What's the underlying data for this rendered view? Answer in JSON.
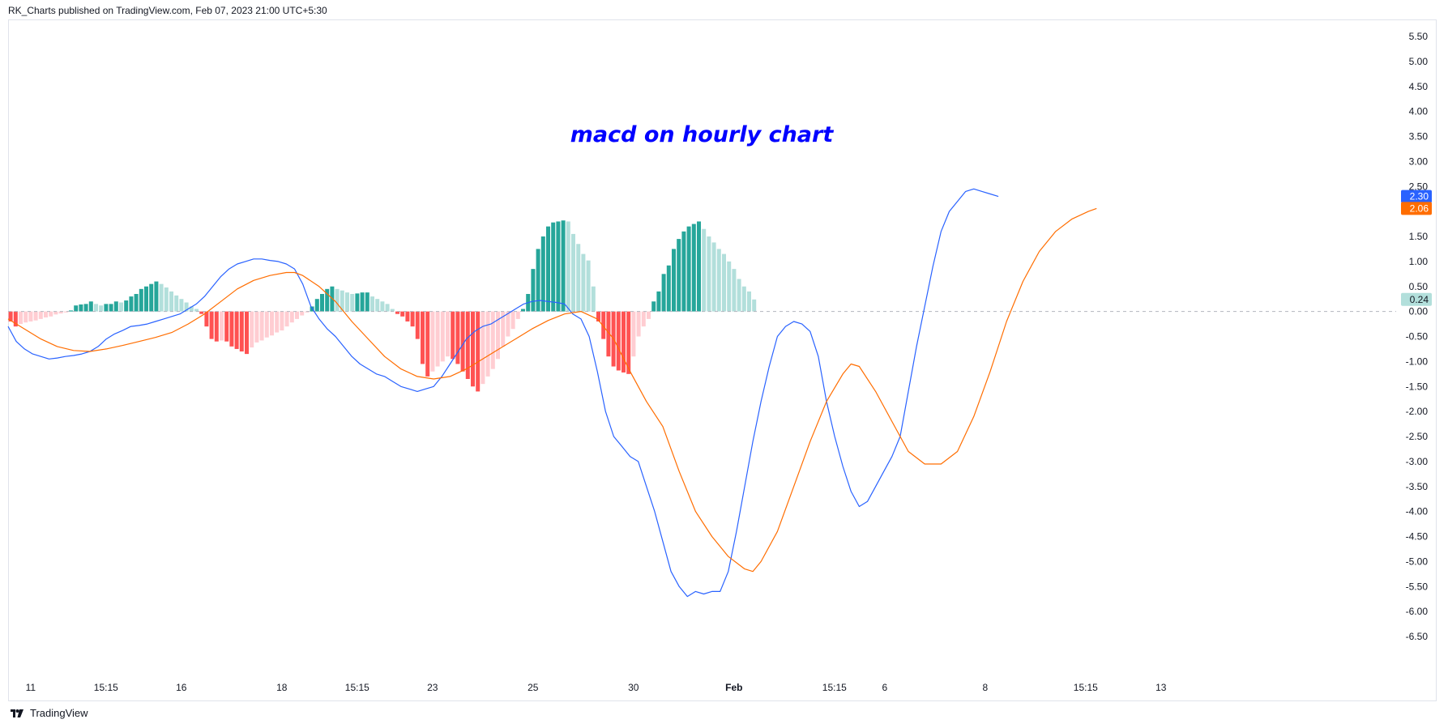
{
  "header": {
    "publish_line": "RK_Charts published on TradingView.com, Feb 07, 2023 21:00 UTC+5:30"
  },
  "footer": {
    "brand": "TradingView",
    "logo_icon": "tradingview-logo-icon"
  },
  "colors": {
    "macd_line": "#2962ff",
    "signal_line": "#ff6d00",
    "hist_pos_strong": "#26a69a",
    "hist_pos_weak": "#b2dfdb",
    "hist_neg_strong": "#ff5252",
    "hist_neg_weak": "#ffcdd2",
    "title": "#0000ff",
    "zero_line": "#b2b5be"
  },
  "chart_data": {
    "type": "bar+line",
    "title": "macd on hourly chart",
    "xlabel": "",
    "ylabel": "",
    "ylim": [
      -6.5,
      5.5
    ],
    "y_ticks": [
      "5.50",
      "5.00",
      "4.50",
      "4.00",
      "3.50",
      "3.00",
      "2.50",
      "2.00",
      "1.50",
      "1.00",
      "0.50",
      "0.00",
      "-0.50",
      "-1.00",
      "-1.50",
      "-2.00",
      "-2.50",
      "-3.00",
      "-3.50",
      "-4.00",
      "-4.50",
      "-5.00",
      "-5.50",
      "-6.00",
      "-6.50"
    ],
    "x_ticks": [
      {
        "label": "11",
        "bar": 4,
        "bold": false
      },
      {
        "label": "15:15",
        "bar": 19,
        "bold": false
      },
      {
        "label": "16",
        "bar": 34,
        "bold": false
      },
      {
        "label": "18",
        "bar": 54,
        "bold": false
      },
      {
        "label": "15:15",
        "bar": 69,
        "bold": false
      },
      {
        "label": "23",
        "bar": 84,
        "bold": false
      },
      {
        "label": "25",
        "bar": 104,
        "bold": false
      },
      {
        "label": "30",
        "bar": 124,
        "bold": false
      },
      {
        "label": "Feb",
        "bar": 144,
        "bold": true
      },
      {
        "label": "15:15",
        "bar": 164,
        "bold": false
      },
      {
        "label": "6",
        "bar": 174,
        "bold": false
      },
      {
        "label": "8",
        "bar": 194,
        "bold": false
      },
      {
        "label": "15:15",
        "bar": 214,
        "bold": false
      },
      {
        "label": "13",
        "bar": 229,
        "bold": false
      }
    ],
    "last_values": {
      "macd": "2.30",
      "signal": "2.06",
      "histogram": "0.24"
    },
    "histogram": [
      -0.2,
      -0.3,
      -0.25,
      -0.22,
      -0.2,
      -0.18,
      -0.15,
      -0.12,
      -0.1,
      -0.06,
      -0.04,
      -0.02,
      0.02,
      0.12,
      0.14,
      0.15,
      0.2,
      0.15,
      0.12,
      0.15,
      0.15,
      0.2,
      0.18,
      0.22,
      0.3,
      0.35,
      0.45,
      0.5,
      0.55,
      0.6,
      0.55,
      0.48,
      0.4,
      0.32,
      0.25,
      0.18,
      0.1,
      0.05,
      -0.05,
      -0.3,
      -0.55,
      -0.6,
      -0.58,
      -0.6,
      -0.7,
      -0.75,
      -0.8,
      -0.85,
      -0.72,
      -0.62,
      -0.58,
      -0.52,
      -0.48,
      -0.42,
      -0.38,
      -0.3,
      -0.22,
      -0.15,
      -0.08,
      -0.02,
      0.1,
      0.25,
      0.35,
      0.45,
      0.5,
      0.45,
      0.42,
      0.38,
      0.35,
      0.36,
      0.38,
      0.38,
      0.3,
      0.25,
      0.2,
      0.15,
      0.05,
      -0.05,
      -0.1,
      -0.2,
      -0.3,
      -0.55,
      -1.05,
      -1.3,
      -1.2,
      -1.1,
      -1.0,
      -0.9,
      -0.95,
      -1.05,
      -1.2,
      -1.35,
      -1.5,
      -1.6,
      -1.45,
      -1.3,
      -1.15,
      -0.95,
      -0.7,
      -0.5,
      -0.35,
      -0.15,
      0.05,
      0.35,
      0.85,
      1.25,
      1.5,
      1.7,
      1.78,
      1.8,
      1.82,
      1.8,
      1.55,
      1.35,
      1.15,
      1.02,
      0.5,
      -0.2,
      -0.55,
      -0.9,
      -1.1,
      -1.18,
      -1.22,
      -1.25,
      -0.9,
      -0.5,
      -0.3,
      -0.15,
      0.2,
      0.4,
      0.75,
      0.92,
      1.25,
      1.45,
      1.6,
      1.7,
      1.75,
      1.8,
      1.65,
      1.5,
      1.38,
      1.25,
      1.15,
      1.0,
      0.85,
      0.65,
      0.5,
      0.4,
      0.24
    ],
    "series": [
      {
        "name": "MACD",
        "values": [
          [
            0,
            -0.3
          ],
          [
            1,
            -0.6
          ],
          [
            2,
            -0.75
          ],
          [
            3,
            -0.85
          ],
          [
            4,
            -0.9
          ],
          [
            5,
            -0.95
          ],
          [
            6,
            -0.93
          ],
          [
            7,
            -0.9
          ],
          [
            8,
            -0.88
          ],
          [
            9,
            -0.85
          ],
          [
            10,
            -0.8
          ],
          [
            11,
            -0.7
          ],
          [
            12,
            -0.55
          ],
          [
            13,
            -0.45
          ],
          [
            14,
            -0.38
          ],
          [
            15,
            -0.3
          ],
          [
            16,
            -0.28
          ],
          [
            17,
            -0.25
          ],
          [
            18,
            -0.2
          ],
          [
            19,
            -0.15
          ],
          [
            20,
            -0.1
          ],
          [
            21,
            -0.05
          ],
          [
            22,
            0.05
          ],
          [
            23,
            0.15
          ],
          [
            24,
            0.3
          ],
          [
            25,
            0.5
          ],
          [
            26,
            0.7
          ],
          [
            27,
            0.85
          ],
          [
            28,
            0.95
          ],
          [
            29,
            1.0
          ],
          [
            30,
            1.05
          ],
          [
            31,
            1.05
          ],
          [
            32,
            1.02
          ],
          [
            33,
            1.0
          ],
          [
            34,
            0.95
          ],
          [
            35,
            0.85
          ],
          [
            36,
            0.55
          ],
          [
            37,
            0.1
          ],
          [
            38,
            -0.15
          ],
          [
            39,
            -0.35
          ],
          [
            40,
            -0.5
          ],
          [
            41,
            -0.7
          ],
          [
            42,
            -0.9
          ],
          [
            43,
            -1.05
          ],
          [
            44,
            -1.15
          ],
          [
            45,
            -1.25
          ],
          [
            46,
            -1.3
          ],
          [
            47,
            -1.4
          ],
          [
            48,
            -1.5
          ],
          [
            49,
            -1.55
          ],
          [
            50,
            -1.6
          ],
          [
            51,
            -1.55
          ],
          [
            52,
            -1.5
          ],
          [
            53,
            -1.3
          ],
          [
            54,
            -1.05
          ],
          [
            55,
            -0.8
          ],
          [
            56,
            -0.55
          ],
          [
            57,
            -0.4
          ],
          [
            58,
            -0.3
          ],
          [
            59,
            -0.25
          ],
          [
            60,
            -0.15
          ],
          [
            61,
            -0.05
          ],
          [
            62,
            0.05
          ],
          [
            63,
            0.15
          ],
          [
            64,
            0.2
          ],
          [
            65,
            0.22
          ],
          [
            66,
            0.2
          ],
          [
            67,
            0.18
          ],
          [
            68,
            0.15
          ],
          [
            69,
            -0.05
          ],
          [
            70,
            -0.15
          ],
          [
            71,
            -0.5
          ],
          [
            72,
            -1.2
          ],
          [
            73,
            -2.0
          ],
          [
            74,
            -2.5
          ],
          [
            75,
            -2.7
          ],
          [
            76,
            -2.9
          ],
          [
            77,
            -3.0
          ],
          [
            78,
            -3.5
          ],
          [
            79,
            -4.0
          ],
          [
            80,
            -4.6
          ],
          [
            81,
            -5.2
          ],
          [
            82,
            -5.5
          ],
          [
            83,
            -5.7
          ],
          [
            84,
            -5.6
          ],
          [
            85,
            -5.65
          ],
          [
            86,
            -5.6
          ],
          [
            87,
            -5.6
          ],
          [
            88,
            -5.2
          ],
          [
            89,
            -4.4
          ],
          [
            90,
            -3.5
          ],
          [
            91,
            -2.6
          ],
          [
            92,
            -1.8
          ],
          [
            93,
            -1.1
          ],
          [
            94,
            -0.5
          ],
          [
            95,
            -0.3
          ],
          [
            96,
            -0.2
          ],
          [
            97,
            -0.25
          ],
          [
            98,
            -0.4
          ],
          [
            99,
            -0.9
          ],
          [
            100,
            -1.8
          ],
          [
            101,
            -2.5
          ],
          [
            102,
            -3.1
          ],
          [
            103,
            -3.6
          ],
          [
            104,
            -3.9
          ],
          [
            105,
            -3.8
          ],
          [
            106,
            -3.5
          ],
          [
            107,
            -3.2
          ],
          [
            108,
            -2.9
          ],
          [
            109,
            -2.5
          ],
          [
            110,
            -1.6
          ],
          [
            111,
            -0.7
          ],
          [
            112,
            0.1
          ],
          [
            113,
            0.9
          ],
          [
            114,
            1.6
          ],
          [
            115,
            2.0
          ],
          [
            116,
            2.2
          ],
          [
            117,
            2.4
          ],
          [
            118,
            2.45
          ],
          [
            119,
            2.4
          ],
          [
            120,
            2.35
          ],
          [
            121,
            2.3
          ]
        ]
      },
      {
        "name": "Signal",
        "values": [
          [
            0,
            -0.15
          ],
          [
            2,
            -0.35
          ],
          [
            4,
            -0.55
          ],
          [
            6,
            -0.7
          ],
          [
            8,
            -0.78
          ],
          [
            10,
            -0.8
          ],
          [
            12,
            -0.75
          ],
          [
            14,
            -0.68
          ],
          [
            16,
            -0.6
          ],
          [
            18,
            -0.52
          ],
          [
            20,
            -0.42
          ],
          [
            22,
            -0.25
          ],
          [
            24,
            -0.05
          ],
          [
            26,
            0.2
          ],
          [
            28,
            0.45
          ],
          [
            30,
            0.62
          ],
          [
            32,
            0.72
          ],
          [
            34,
            0.78
          ],
          [
            35,
            0.78
          ],
          [
            36,
            0.72
          ],
          [
            38,
            0.5
          ],
          [
            40,
            0.2
          ],
          [
            42,
            -0.2
          ],
          [
            44,
            -0.55
          ],
          [
            46,
            -0.9
          ],
          [
            48,
            -1.15
          ],
          [
            50,
            -1.3
          ],
          [
            52,
            -1.35
          ],
          [
            54,
            -1.3
          ],
          [
            56,
            -1.15
          ],
          [
            58,
            -0.95
          ],
          [
            60,
            -0.75
          ],
          [
            62,
            -0.55
          ],
          [
            64,
            -0.35
          ],
          [
            66,
            -0.18
          ],
          [
            68,
            -0.05
          ],
          [
            70,
            0.0
          ],
          [
            72,
            -0.15
          ],
          [
            74,
            -0.55
          ],
          [
            76,
            -1.2
          ],
          [
            78,
            -1.8
          ],
          [
            80,
            -2.3
          ],
          [
            82,
            -3.2
          ],
          [
            84,
            -4.0
          ],
          [
            86,
            -4.5
          ],
          [
            88,
            -4.9
          ],
          [
            90,
            -5.15
          ],
          [
            91,
            -5.2
          ],
          [
            92,
            -5.0
          ],
          [
            94,
            -4.4
          ],
          [
            96,
            -3.5
          ],
          [
            98,
            -2.6
          ],
          [
            100,
            -1.8
          ],
          [
            102,
            -1.25
          ],
          [
            103,
            -1.05
          ],
          [
            104,
            -1.1
          ],
          [
            106,
            -1.6
          ],
          [
            108,
            -2.2
          ],
          [
            110,
            -2.8
          ],
          [
            112,
            -3.05
          ],
          [
            114,
            -3.05
          ],
          [
            116,
            -2.8
          ],
          [
            118,
            -2.1
          ],
          [
            120,
            -1.2
          ],
          [
            122,
            -0.2
          ],
          [
            124,
            0.6
          ],
          [
            126,
            1.2
          ],
          [
            128,
            1.6
          ],
          [
            130,
            1.85
          ],
          [
            132,
            2.0
          ],
          [
            133,
            2.06
          ]
        ]
      }
    ]
  }
}
